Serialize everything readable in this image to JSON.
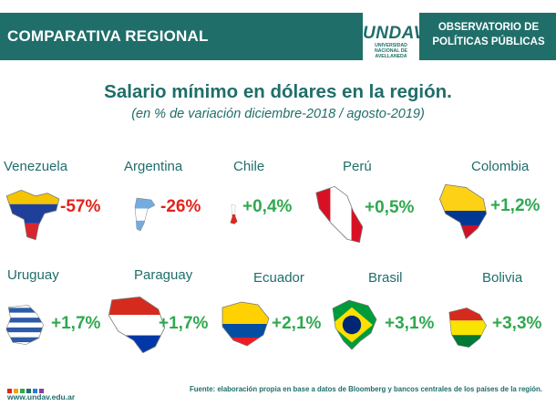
{
  "header": {
    "left_title": "COMPARATIVA REGIONAL",
    "logo_word": "UNDAV",
    "logo_sub": [
      "UNIVERSIDAD",
      "NACIONAL DE",
      "AVELLANEDA"
    ],
    "right_title": [
      "OBSERVATORIO DE",
      "POLÍTICAS PÚBLICAS"
    ]
  },
  "chart_data": {
    "type": "table",
    "title": "Salario mínimo en dólares en la región.",
    "subtitle": "(en % de variación diciembre-2018 / agosto-2019)",
    "categories": [
      "Venezuela",
      "Argentina",
      "Chile",
      "Perú",
      "Colombia",
      "Uruguay",
      "Paraguay",
      "Ecuador",
      "Brasil",
      "Bolivia"
    ],
    "values": [
      -57,
      -26,
      0.4,
      0.5,
      1.2,
      1.7,
      1.7,
      2.1,
      3.1,
      3.3
    ],
    "value_labels": [
      "-57%",
      "-26%",
      "+0,4%",
      "+0,5%",
      "+1,2%",
      "+1,7%",
      "+1,7%",
      "+2,1%",
      "+3,1%",
      "+3,3%"
    ],
    "colors": {
      "negative": "#e2241b",
      "positive": "#2fa84f"
    }
  },
  "colors": {
    "brand": "#1f6e6a",
    "logo_dots": [
      "#e2241b",
      "#f5a300",
      "#2fa84f",
      "#1f6e6a",
      "#2a7fd4",
      "#8e3b9b"
    ]
  },
  "footer": {
    "url": "www.undav.edu.ar",
    "source": "Fuente: elaboración propia en base a datos de Bloomberg y bancos centrales de los países de la región."
  }
}
